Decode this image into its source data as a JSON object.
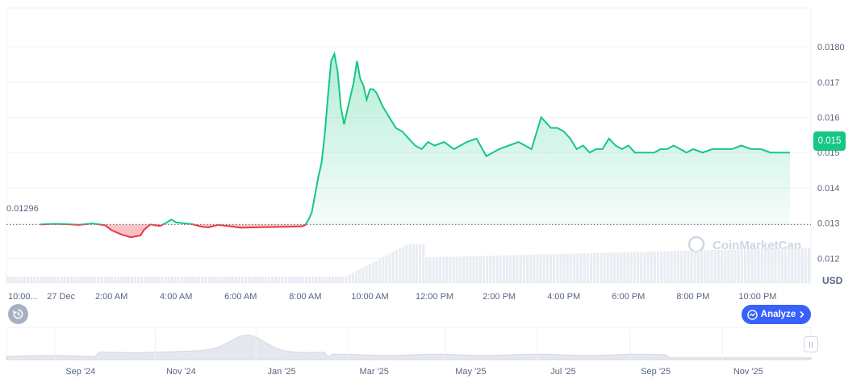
{
  "chart_data": {
    "type": "line",
    "currency_label": "USD",
    "brand": "CoinMarketCap",
    "start_price_label": "0.01296",
    "current_price_label": "0.015",
    "baseline": 0.01296,
    "ylim": [
      0.0113,
      0.0191
    ],
    "y_ticks": [
      {
        "value": 0.012,
        "label": "0.012"
      },
      {
        "value": 0.013,
        "label": "0.013"
      },
      {
        "value": 0.014,
        "label": "0.014"
      },
      {
        "value": 0.015,
        "label": "0.015"
      },
      {
        "value": 0.016,
        "label": "0.016"
      },
      {
        "value": 0.017,
        "label": "0.017"
      },
      {
        "value": 0.018,
        "label": "0.0180"
      }
    ],
    "x_ticks": [
      {
        "hour": -0.18,
        "label": "10:00..."
      },
      {
        "hour": 0.44,
        "label": "27 Dec"
      },
      {
        "hour": 2.0,
        "label": "2:00 AM"
      },
      {
        "hour": 4.0,
        "label": "4:00 AM"
      },
      {
        "hour": 6.0,
        "label": "6:00 AM"
      },
      {
        "hour": 8.0,
        "label": "8:00 AM"
      },
      {
        "hour": 10.0,
        "label": "10:00 AM"
      },
      {
        "hour": 12.0,
        "label": "12:00 PM"
      },
      {
        "hour": 14.0,
        "label": "2:00 PM"
      },
      {
        "hour": 16.0,
        "label": "4:00 PM"
      },
      {
        "hour": 18.0,
        "label": "6:00 PM"
      },
      {
        "hour": 20.0,
        "label": "8:00 PM"
      },
      {
        "hour": 22.0,
        "label": "10:00 PM"
      }
    ],
    "xlim_hours": [
      -1.25,
      23.65
    ],
    "series": [
      {
        "x_hours": [
          -0.2,
          0.2,
          0.6,
          1.0,
          1.4,
          1.8,
          2.0,
          2.3,
          2.6,
          2.9,
          3.0,
          3.2,
          3.5,
          3.7,
          3.85,
          4.0,
          4.2,
          4.5,
          4.8,
          5.0,
          5.3,
          5.6,
          6.0,
          6.5,
          7.0,
          7.5,
          7.9,
          8.0,
          8.1,
          8.2,
          8.3,
          8.4,
          8.5,
          8.6,
          8.7,
          8.8,
          8.9,
          9.0,
          9.1,
          9.2,
          9.3,
          9.4,
          9.5,
          9.6,
          9.7,
          9.8,
          9.9,
          10.0,
          10.1,
          10.2,
          10.4,
          10.6,
          10.8,
          11.0,
          11.2,
          11.4,
          11.6,
          11.8,
          12.0,
          12.3,
          12.6,
          13.0,
          13.3,
          13.6,
          14.0,
          14.3,
          14.6,
          15.0,
          15.3,
          15.6,
          15.8,
          16.0,
          16.2,
          16.4,
          16.6,
          16.8,
          17.0,
          17.2,
          17.4,
          17.6,
          17.8,
          18.0,
          18.2,
          18.4,
          18.6,
          18.8,
          19.0,
          19.2,
          19.4,
          19.6,
          19.8,
          20.0,
          20.3,
          20.6,
          20.9,
          21.2,
          21.5,
          21.8,
          22.1,
          22.4,
          22.7,
          23.0
        ],
        "values": [
          0.01296,
          0.01298,
          0.01297,
          0.01295,
          0.01299,
          0.01294,
          0.0128,
          0.01268,
          0.0126,
          0.01265,
          0.0128,
          0.01296,
          0.01292,
          0.01301,
          0.0131,
          0.01302,
          0.013,
          0.01297,
          0.0129,
          0.01288,
          0.01295,
          0.01292,
          0.01287,
          0.01288,
          0.01289,
          0.0129,
          0.01291,
          0.01295,
          0.0131,
          0.0133,
          0.0138,
          0.0143,
          0.0147,
          0.0155,
          0.0166,
          0.0176,
          0.0178,
          0.0173,
          0.0163,
          0.0158,
          0.0162,
          0.0166,
          0.017,
          0.0176,
          0.0171,
          0.0169,
          0.0165,
          0.0168,
          0.0168,
          0.0167,
          0.0163,
          0.016,
          0.0157,
          0.0156,
          0.0154,
          0.0152,
          0.0151,
          0.0153,
          0.0152,
          0.0153,
          0.0151,
          0.0153,
          0.0154,
          0.0149,
          0.0151,
          0.0152,
          0.0153,
          0.0151,
          0.016,
          0.0157,
          0.0157,
          0.0156,
          0.0154,
          0.0151,
          0.0152,
          0.015,
          0.0151,
          0.0151,
          0.0154,
          0.0152,
          0.0151,
          0.0152,
          0.015,
          0.015,
          0.015,
          0.015,
          0.0151,
          0.0151,
          0.0152,
          0.0151,
          0.015,
          0.0151,
          0.015,
          0.0151,
          0.0151,
          0.0151,
          0.0152,
          0.0151,
          0.0151,
          0.015,
          0.015,
          0.015
        ]
      }
    ],
    "colors": {
      "up": "#16c784",
      "down": "#ea3943",
      "grid": "#eff2f5",
      "volume": "#e9edf3",
      "accent": "#3861fb"
    },
    "navigator": {
      "labels": [
        "Sep '24",
        "Nov '24",
        "Jan '25",
        "Mar '25",
        "May '25",
        "Jul '25",
        "Sep '25",
        "Nov '25"
      ],
      "label_fractions": [
        0.06,
        0.185,
        0.31,
        0.425,
        0.545,
        0.66,
        0.775,
        0.89
      ]
    }
  },
  "controls": {
    "analyze_label": "Analyze"
  },
  "icons": {
    "history": "history-icon",
    "analyze": "analyze-icon",
    "chevron": "chevron-right-icon"
  }
}
